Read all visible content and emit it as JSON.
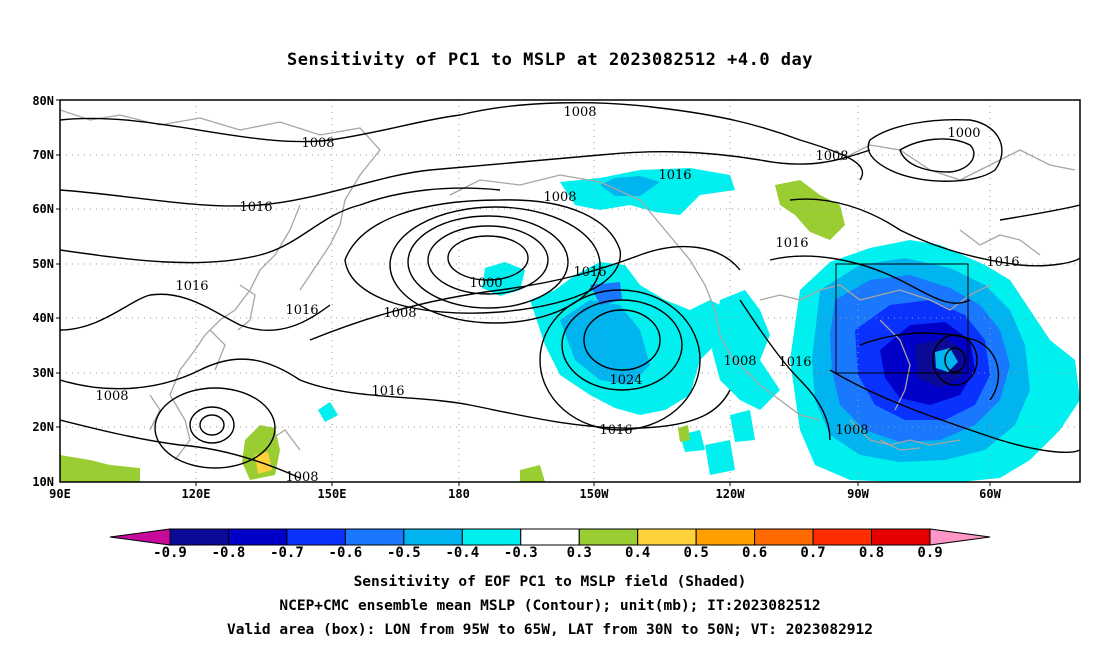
{
  "title": "Sensitivity of PC1 to MSLP at 2023082512 +4.0 day",
  "lat_ticks": [
    "80N",
    "70N",
    "60N",
    "50N",
    "40N",
    "30N",
    "20N",
    "10N"
  ],
  "lon_ticks": [
    "90E",
    "120E",
    "150E",
    "180",
    "150W",
    "120W",
    "90W",
    "60W"
  ],
  "contour_labels": [
    "1008",
    "1008",
    "1016",
    "1008",
    "1000",
    "1008",
    "1016",
    "1016",
    "1016",
    "1016",
    "1000",
    "1008",
    "1024",
    "1016",
    "1008",
    "1016",
    "1016",
    "1008",
    "1016",
    "1008",
    "1008"
  ],
  "colorbar": {
    "labels": [
      "-0.9",
      "-0.8",
      "-0.7",
      "-0.6",
      "-0.5",
      "-0.4",
      "-0.3",
      "0.3",
      "0.4",
      "0.5",
      "0.6",
      "0.7",
      "0.8",
      "0.9"
    ],
    "colors": [
      "#c70a9c",
      "#0a0a96",
      "#0000c8",
      "#0a32ff",
      "#1a78ff",
      "#00b4f0",
      "#00f0f0",
      "#ffffff",
      "#9acd32",
      "#ffd23c",
      "#ffa000",
      "#ff6a00",
      "#ff2d00",
      "#e60000",
      "#ff96c8"
    ]
  },
  "captions": [
    "Sensitivity of EOF PC1 to MSLP field (Shaded)",
    "NCEP+CMC ensemble mean MSLP (Contour); unit(mb); IT:2023082512",
    "Valid area (box): LON from 95W to 65W, LAT from 30N to 50N; VT: 2023082912"
  ]
}
